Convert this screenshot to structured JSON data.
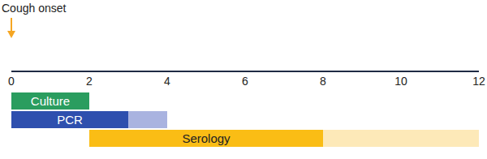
{
  "chart_data": {
    "type": "bar",
    "orientation": "horizontal",
    "annotation": {
      "text": "Cough onset",
      "x": 0
    },
    "categories": [
      "Culture",
      "PCR",
      "Serology"
    ],
    "start": [
      0,
      0,
      2
    ],
    "end": [
      2,
      3,
      8
    ],
    "extension_end": [
      null,
      4,
      12
    ],
    "colors": [
      "#2a9d5f",
      "#2e4fae",
      "#fabd15"
    ],
    "extension_colors": [
      null,
      "#a9b3e0",
      "#fde9b8"
    ],
    "xlim": [
      0,
      12
    ],
    "xticks": [
      0,
      2,
      4,
      6,
      8,
      10,
      12
    ],
    "tick_labels": "x",
    "grid": false
  }
}
